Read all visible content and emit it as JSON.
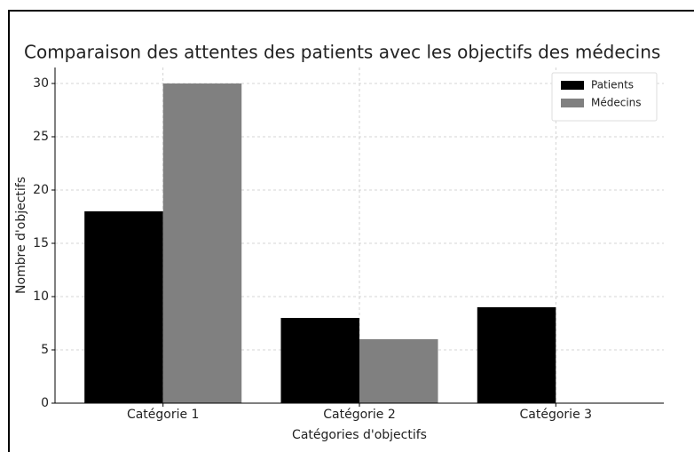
{
  "chart_data": {
    "type": "bar",
    "title": "Comparaison des attentes des patients avec les objectifs des médecins",
    "xlabel": "Catégories d'objectifs",
    "ylabel": "Nombre d'objectifs",
    "categories": [
      "Catégorie 1",
      "Catégorie 2",
      "Catégorie 3"
    ],
    "series": [
      {
        "name": "Patients",
        "color": "#000000",
        "values": [
          18,
          8,
          9
        ]
      },
      {
        "name": "Médecins",
        "color": "#808080",
        "values": [
          30,
          6,
          0
        ]
      }
    ],
    "ylim": [
      0,
      31.5
    ],
    "yticks": [
      0,
      5,
      10,
      15,
      20,
      25,
      30
    ],
    "grid": true,
    "legend": "upper right"
  }
}
